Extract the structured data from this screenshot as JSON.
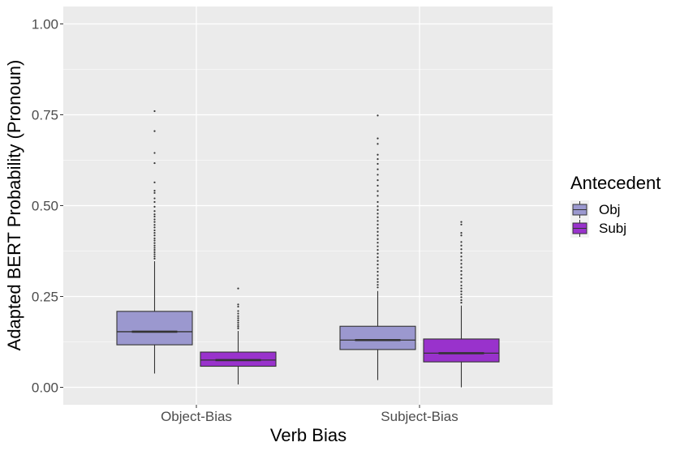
{
  "chart_data": {
    "type": "boxplot",
    "xlabel": "Verb Bias",
    "ylabel": "Adapted BERT Probability (Pronoun)",
    "categories": [
      "Object-Bias",
      "Subject-Bias"
    ],
    "ylim": [
      -0.05,
      1.05
    ],
    "yticks": [
      0.0,
      0.25,
      0.5,
      0.75,
      1.0
    ],
    "ytick_labels": [
      "0.00",
      "0.25",
      "0.50",
      "0.75",
      "1.00"
    ],
    "grid": true,
    "legend": {
      "title": "Antecedent",
      "position": "right",
      "entries": [
        "Obj",
        "Subj"
      ]
    },
    "colors": {
      "panel_bg": "#ebebeb",
      "grid": "#ffffff",
      "Obj": "#9b98cf",
      "Subj": "#9932cc",
      "line": "#333333"
    },
    "series": [
      {
        "name": "Obj",
        "boxes": [
          {
            "category": "Object-Bias",
            "whisker_low": 0.038,
            "q1": 0.117,
            "median": 0.153,
            "q3": 0.209,
            "whisker_high": 0.347,
            "outliers": [
              0.76,
              0.705,
              0.645,
              0.617,
              0.564,
              0.541,
              0.535,
              0.52,
              0.51,
              0.497,
              0.485,
              0.476,
              0.47,
              0.462,
              0.455,
              0.447,
              0.44,
              0.432,
              0.425,
              0.418,
              0.41,
              0.404,
              0.397,
              0.39,
              0.384,
              0.378,
              0.372,
              0.366,
              0.36,
              0.354
            ]
          },
          {
            "category": "Subject-Bias",
            "whisker_low": 0.02,
            "q1": 0.104,
            "median": 0.13,
            "q3": 0.168,
            "whisker_high": 0.265,
            "outliers": [
              0.748,
              0.685,
              0.67,
              0.64,
              0.628,
              0.615,
              0.6,
              0.585,
              0.57,
              0.555,
              0.54,
              0.527,
              0.51,
              0.498,
              0.488,
              0.478,
              0.468,
              0.458,
              0.448,
              0.438,
              0.428,
              0.418,
              0.408,
              0.398,
              0.388,
              0.378,
              0.368,
              0.358,
              0.348,
              0.338,
              0.328,
              0.318,
              0.308,
              0.298,
              0.29,
              0.282,
              0.275
            ]
          }
        ]
      },
      {
        "name": "Subj",
        "boxes": [
          {
            "category": "Object-Bias",
            "whisker_low": 0.008,
            "q1": 0.058,
            "median": 0.075,
            "q3": 0.097,
            "whisker_high": 0.155,
            "outliers": [
              0.272,
              0.228,
              0.222,
              0.21,
              0.203,
              0.196,
              0.19,
              0.184,
              0.178,
              0.172,
              0.167,
              0.162
            ]
          },
          {
            "category": "Subject-Bias",
            "whisker_low": 0.0,
            "q1": 0.07,
            "median": 0.094,
            "q3": 0.133,
            "whisker_high": 0.225,
            "outliers": [
              0.455,
              0.448,
              0.425,
              0.418,
              0.4,
              0.39,
              0.38,
              0.37,
              0.36,
              0.35,
              0.34,
              0.33,
              0.32,
              0.31,
              0.3,
              0.29,
              0.28,
              0.272,
              0.264,
              0.256,
              0.248,
              0.24,
              0.233
            ]
          }
        ]
      }
    ]
  }
}
